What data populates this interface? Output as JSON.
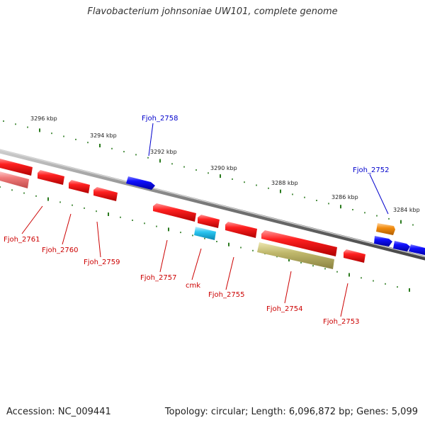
{
  "title": "Flavobacterium johnsoniae UW101, complete genome",
  "footer": {
    "accession": "Accession: NC_009441",
    "summary": "Topology: circular; Length: 6,096,872 bp; Genes: 5,099"
  },
  "scale_labels": [
    "3296 kbp",
    "3294 kbp",
    "3292 kbp",
    "3290 kbp",
    "3288 kbp",
    "3286 kbp",
    "3284 kbp"
  ],
  "gene_labels": {
    "forward": [
      "Fjoh_2758",
      "Fjoh_2752"
    ],
    "reverse": [
      "Fjoh_2761",
      "Fjoh_2760",
      "Fjoh_2759",
      "Fjoh_2757",
      "cmk",
      "Fjoh_2755",
      "Fjoh_2754",
      "Fjoh_2753"
    ]
  },
  "colors": {
    "forward_label": "#0000cc",
    "reverse_label": "#cc0000",
    "scale": "#2a7a1e",
    "backbone": "#777777",
    "forward_gene": "#0000ee",
    "reverse_gene": "#ee0000",
    "rna_gene": "#29c5f0",
    "orange_gene": "#f28c0f",
    "khaki_gene": "#bfb76b",
    "pink_gene": "#f07a7a"
  }
}
